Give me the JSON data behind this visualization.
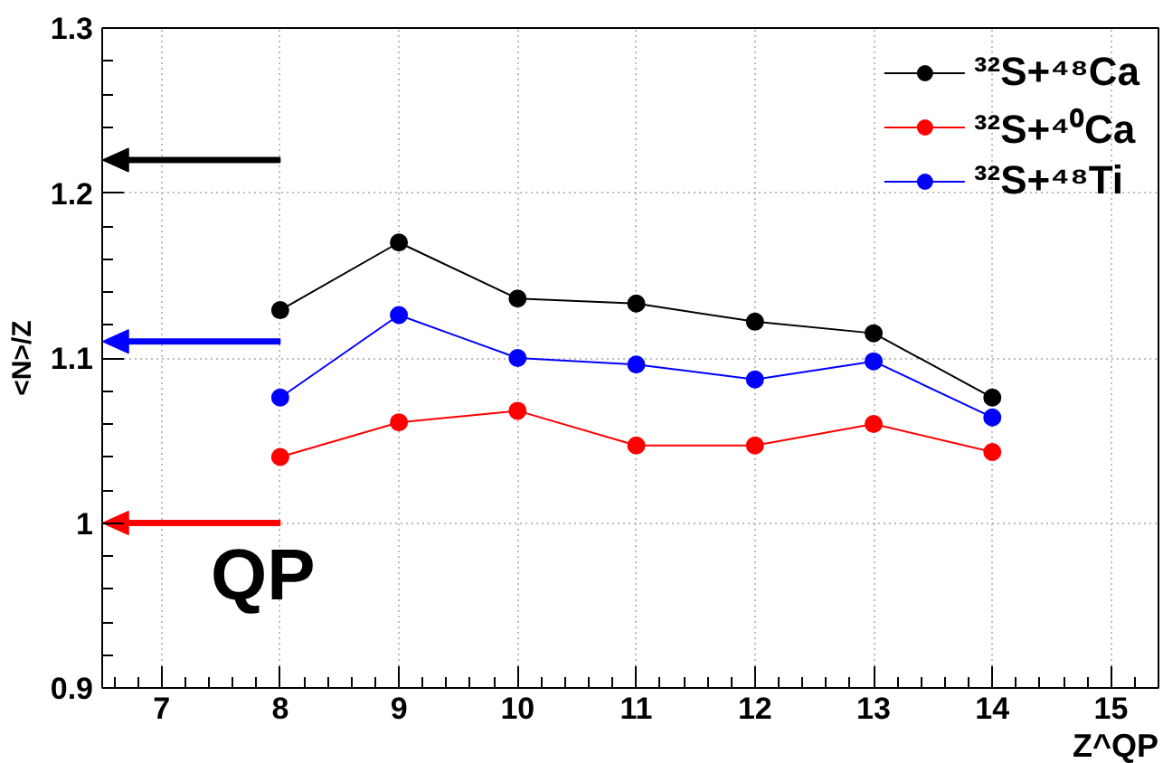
{
  "chart_data": {
    "type": "line",
    "xlabel": "Z^QP",
    "ylabel": "<N>/Z",
    "x": [
      8,
      9,
      10,
      11,
      12,
      13,
      14
    ],
    "series": [
      {
        "name": "³²S+⁴⁸Ca",
        "color": "#000000",
        "values": [
          1.129,
          1.17,
          1.136,
          1.133,
          1.122,
          1.115,
          1.076
        ]
      },
      {
        "name": "³²S+⁴⁰Ca",
        "color": "#ff0000",
        "values": [
          1.04,
          1.061,
          1.068,
          1.047,
          1.047,
          1.06,
          1.043
        ]
      },
      {
        "name": "³²S+⁴⁸Ti",
        "color": "#0000ff",
        "values": [
          1.076,
          1.126,
          1.1,
          1.096,
          1.087,
          1.098,
          1.064
        ]
      }
    ],
    "xlim": [
      6.5,
      15.4
    ],
    "xticks": [
      7,
      8,
      9,
      10,
      11,
      12,
      13,
      14,
      15
    ],
    "ylim": [
      0.9,
      1.3
    ],
    "yticks": [
      0.9,
      1,
      1.1,
      1.2,
      1.3
    ],
    "ref_lines": [
      {
        "axis": "y",
        "value": 1.22,
        "color": "#000000"
      },
      {
        "axis": "y",
        "value": 1.11,
        "color": "#0000ff"
      },
      {
        "axis": "y",
        "value": 1.0,
        "color": "#ff0000"
      }
    ],
    "annotations": [
      "QP"
    ],
    "grid": true,
    "legend": "top right",
    "marker": "circle",
    "line_style": "solid"
  }
}
